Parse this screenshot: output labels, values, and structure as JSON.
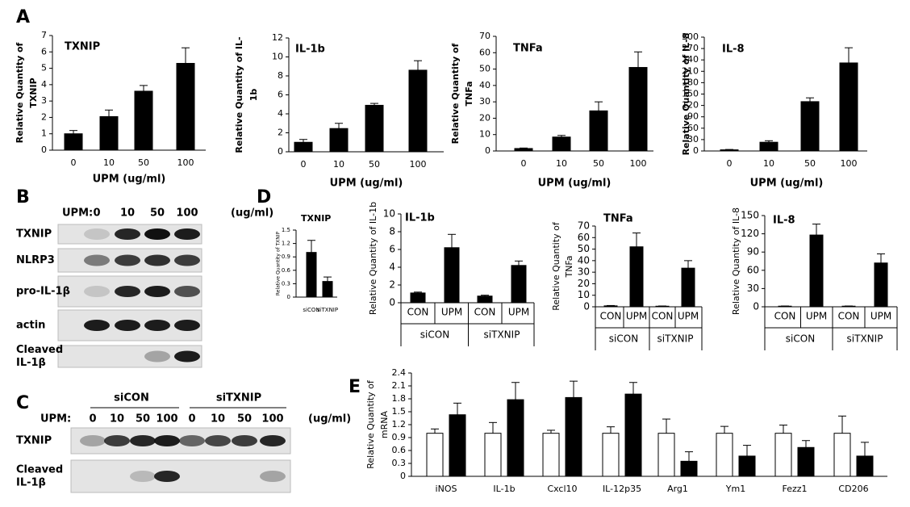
{
  "panel_labels": [
    "A",
    "B",
    "C",
    "D",
    "E"
  ],
  "chart_data": [
    {
      "type": "bar",
      "title": "TXNIP",
      "y_label": [
        "Relative Quantity of",
        "TXNIP"
      ],
      "x_label": "UPM (ug/ml)",
      "categories": [
        "0",
        "10",
        "50",
        "100"
      ],
      "values": [
        1,
        2.05,
        3.6,
        5.3
      ],
      "errors": [
        0.2,
        0.4,
        0.35,
        0.95
      ],
      "color": "#000000",
      "ylim": [
        0,
        7
      ],
      "yticks": [
        0,
        1,
        2,
        3,
        4,
        5,
        6,
        7
      ]
    },
    {
      "type": "bar",
      "title": "IL-1b",
      "y_label": [
        "Relative Quantity of IL-",
        "1b"
      ],
      "x_label": "UPM (ug/ml)",
      "categories": [
        "0",
        "10",
        "50",
        "100"
      ],
      "values": [
        1,
        2.45,
        4.9,
        8.6
      ],
      "errors": [
        0.3,
        0.55,
        0.2,
        1
      ],
      "color": "#000000",
      "ylim": [
        0,
        12
      ],
      "yticks": [
        0,
        2,
        4,
        6,
        8,
        10,
        12
      ]
    },
    {
      "type": "bar",
      "title": "TNFa",
      "y_label": [
        "Relative Quantity of",
        "TNFa"
      ],
      "x_label": "UPM (ug/ml)",
      "categories": [
        "0",
        "10",
        "50",
        "100"
      ],
      "values": [
        1.5,
        8.5,
        24.5,
        51
      ],
      "errors": [
        0.3,
        1,
        5.5,
        9.5
      ],
      "color": "#000000",
      "ylim": [
        0,
        70
      ],
      "yticks": [
        0,
        10,
        20,
        30,
        40,
        50,
        60,
        70
      ]
    },
    {
      "type": "bar",
      "title": "IL-8",
      "y_label": [
        "Relative Quantity of IL-8"
      ],
      "x_label": "UPM (ug/ml)",
      "categories": [
        "0",
        "10",
        "50",
        "100"
      ],
      "values": [
        3,
        23,
        130,
        232
      ],
      "errors": [
        1,
        4,
        10,
        40
      ],
      "color": "#000000",
      "ylim": [
        0,
        300
      ],
      "yticks": [
        0,
        30,
        60,
        90,
        120,
        150,
        180,
        210,
        240,
        270,
        300
      ]
    },
    {
      "type": "bar",
      "title": "TXNIP",
      "y_label": [
        "Relative Quantity of TXNIP"
      ],
      "categories": [
        "siCON",
        "siTXNIP"
      ],
      "values": [
        1,
        0.35
      ],
      "errors": [
        0.27,
        0.1
      ],
      "color": "#000000",
      "ylim": [
        0,
        1.5
      ],
      "yticks": [
        0,
        0.3,
        0.6,
        0.9,
        1.2,
        1.5
      ]
    },
    {
      "type": "bar",
      "title": "IL-1b",
      "y_label": [
        "Relative Quantity of IL-1b"
      ],
      "categories": [
        "CON",
        "UPM",
        "CON",
        "UPM"
      ],
      "groups": [
        "siCON",
        "siTXNIP"
      ],
      "values": [
        1.1,
        6.2,
        0.75,
        4.2
      ],
      "errors": [
        0.1,
        1.5,
        0.1,
        0.5
      ],
      "color": "#000000",
      "ylim": [
        0,
        10
      ],
      "yticks": [
        0,
        2,
        4,
        6,
        8,
        10
      ]
    },
    {
      "type": "bar",
      "title": "TNFa",
      "y_label": [
        "Relative Quantity of",
        "TNFa"
      ],
      "categories": [
        "CON",
        "UPM",
        "CON",
        "UPM"
      ],
      "groups": [
        "siCON",
        "siTXNIP"
      ],
      "values": [
        0.8,
        52,
        0.5,
        33.5
      ],
      "errors": [
        0.3,
        12,
        0.2,
        6.5
      ],
      "color": "#000000",
      "ylim": [
        0,
        70
      ],
      "yticks": [
        0,
        10,
        20,
        30,
        40,
        50,
        60,
        70
      ]
    },
    {
      "type": "bar",
      "title": "IL-8",
      "y_label": [
        "Relative Quantity of IL-8"
      ],
      "categories": [
        "CON",
        "UPM",
        "CON",
        "UPM"
      ],
      "groups": [
        "siCON",
        "siTXNIP"
      ],
      "values": [
        1,
        118,
        1,
        72
      ],
      "errors": [
        0.3,
        18,
        0.3,
        15
      ],
      "color": "#000000",
      "ylim": [
        0,
        150
      ],
      "yticks": [
        0,
        30,
        60,
        90,
        120,
        150
      ]
    },
    {
      "type": "grouped-bar",
      "y_label": [
        "Relative Quantity of",
        "mRNA"
      ],
      "categories": [
        "iNOS",
        "IL-1b",
        "Cxcl10",
        "IL-12p35",
        "Arg1",
        "Ym1",
        "Fezz1",
        "CD206"
      ],
      "series": [
        {
          "color": "#ffffff",
          "values": [
            1,
            1,
            1,
            1,
            1,
            1,
            1,
            1
          ],
          "errors": [
            0.1,
            0.25,
            0.07,
            0.15,
            0.33,
            0.16,
            0.19,
            0.4
          ]
        },
        {
          "color": "#000000",
          "values": [
            1.43,
            1.78,
            1.83,
            1.91,
            0.35,
            0.47,
            0.67,
            0.47
          ],
          "errors": [
            0.27,
            0.4,
            0.38,
            0.27,
            0.22,
            0.25,
            0.16,
            0.32
          ]
        }
      ],
      "ylim": [
        0,
        2.4
      ],
      "yticks": [
        0,
        0.3,
        0.6,
        0.9,
        1.2,
        1.5,
        1.8,
        2.1,
        2.4
      ]
    }
  ],
  "blots": [
    {
      "condition_label": "UPM:",
      "lanes": [
        "0",
        "10",
        "50",
        "100"
      ],
      "unit": "(ug/ml)",
      "rows": [
        [
          "TXNIP"
        ],
        [
          "NLRP3"
        ],
        [
          "pro-IL-1β"
        ],
        [
          "actin"
        ],
        [
          "Cleaved",
          "IL-1β"
        ]
      ]
    },
    {
      "groups": [
        "siCON",
        "siTXNIP"
      ],
      "condition_label": "UPM:",
      "lanes": [
        "0",
        "10",
        "50",
        "100",
        "0",
        "10",
        "50",
        "100"
      ],
      "unit": "(ug/ml)",
      "rows": [
        [
          "TXNIP"
        ],
        [
          "Cleaved",
          "IL-1β"
        ]
      ]
    }
  ]
}
